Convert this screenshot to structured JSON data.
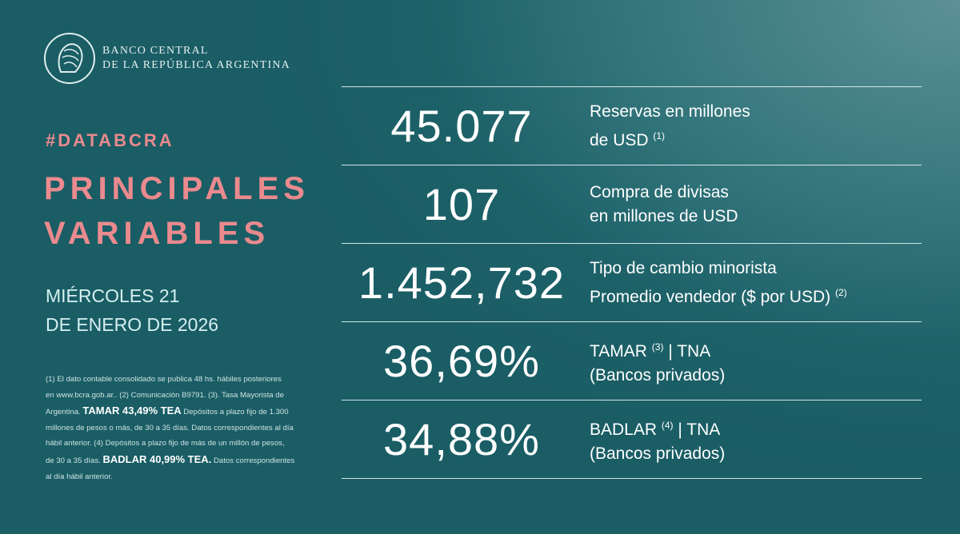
{
  "brand": {
    "line1": "BANCO CENTRAL",
    "line2": "DE LA REPÚBLICA ARGENTINA",
    "logo_icon": "bcra-seal-icon"
  },
  "hashtag": "#DATABCRA",
  "title": {
    "line1": "PRINCIPALES",
    "line2": "VARIABLES"
  },
  "date": {
    "line1": "MIÉRCOLES 21",
    "line2": "DE ENERO DE 2026"
  },
  "colors": {
    "accent": "#ea8a8e",
    "background": "#1d6168"
  },
  "footnotes": [
    [
      {
        "t": "(1) El dato contable consolidado se publica 48 hs. hábiles posteriores"
      }
    ],
    [
      {
        "t": "en www.bcra.gob.ar.. (2) Comunicación B9791. (3). Tasa Mayorista de"
      }
    ],
    [
      {
        "t": "Argentina. "
      },
      {
        "t": "TAMAR 43,49% TEA",
        "b": true
      },
      {
        "t": " Depósitos a plazo fijo de 1.300"
      }
    ],
    [
      {
        "t": "millones de pesos o más, de 30 a 35 días. Datos correspondientes al día"
      }
    ],
    [
      {
        "t": "hábil anterior. (4) Depósitos a plazo fijo de más de un millón de pesos,"
      }
    ],
    [
      {
        "t": "de 30 a 35 días. "
      },
      {
        "t": "BADLAR 40,99% TEA.",
        "b": true
      },
      {
        "t": " Datos correspondientes"
      }
    ],
    [
      {
        "t": "al día hábil anterior."
      }
    ]
  ],
  "variables": [
    {
      "value": "45.077",
      "label1": "Reservas en millones",
      "label2": "de USD",
      "note2": "(1)"
    },
    {
      "value": "107",
      "label1": "Compra de divisas",
      "label2": "en millones de USD",
      "note2": ""
    },
    {
      "value": "1.452,732",
      "label1": "Tipo de cambio minorista",
      "label2": "Promedio vendedor ($ por USD)",
      "note2": "(2)"
    },
    {
      "value": "36,69%",
      "label1a": "TAMAR",
      "note1": "(3)",
      "label1b": "| TNA",
      "label2": "(Bancos privados)"
    },
    {
      "value": "34,88%",
      "label1a": "BADLAR",
      "note1": "(4)",
      "label1b": "| TNA",
      "label2": "(Bancos privados)"
    }
  ]
}
